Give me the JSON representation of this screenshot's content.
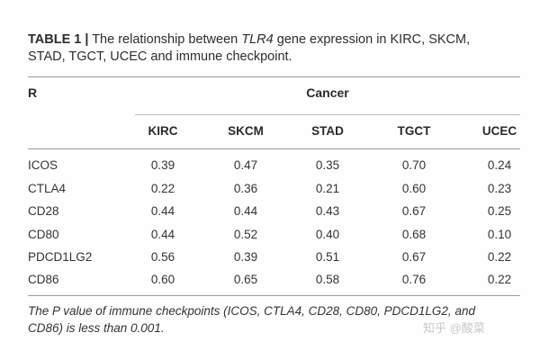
{
  "table": {
    "label": "TABLE 1 |",
    "caption_pre": " The relationship between ",
    "caption_gene": "TLR4",
    "caption_post": " gene expression in KIRC, SKCM,",
    "caption_line2": "STAD, TGCT, UCEC and immune checkpoint.",
    "row_header": "R",
    "group_header": "Cancer",
    "columns": [
      "KIRC",
      "SKCM",
      "STAD",
      "TGCT",
      "UCEC"
    ],
    "rows": [
      {
        "name": "ICOS",
        "values": [
          "0.39",
          "0.47",
          "0.35",
          "0.70",
          "0.24"
        ]
      },
      {
        "name": "CTLA4",
        "values": [
          "0.22",
          "0.36",
          "0.21",
          "0.60",
          "0.23"
        ]
      },
      {
        "name": "CD28",
        "values": [
          "0.44",
          "0.44",
          "0.43",
          "0.67",
          "0.25"
        ]
      },
      {
        "name": "CD80",
        "values": [
          "0.44",
          "0.52",
          "0.40",
          "0.68",
          "0.10"
        ]
      },
      {
        "name": "PDCD1LG2",
        "values": [
          "0.56",
          "0.39",
          "0.51",
          "0.67",
          "0.22"
        ]
      },
      {
        "name": "CD86",
        "values": [
          "0.60",
          "0.65",
          "0.58",
          "0.76",
          "0.22"
        ]
      }
    ],
    "footnote_line1": "The P value of immune checkpoints (ICOS, CTLA4, CD28, CD80, PDCD1LG2, and",
    "footnote_line2": "CD86) is less than 0.001."
  },
  "watermark": "知乎 @酸菜"
}
